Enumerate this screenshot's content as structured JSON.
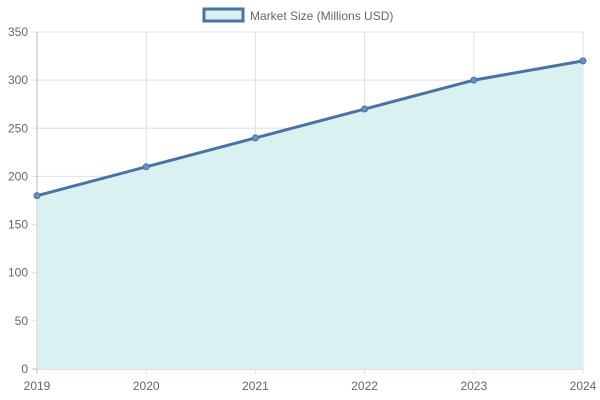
{
  "chart_data": {
    "type": "area",
    "x": [
      "2019",
      "2020",
      "2021",
      "2022",
      "2023",
      "2024"
    ],
    "series": [
      {
        "name": "Market Size (Millions USD)",
        "values": [
          180,
          210,
          240,
          270,
          300,
          320
        ],
        "line_color": "#4a72a3",
        "fill_color": "#d9f1f1"
      }
    ],
    "ylim": [
      0,
      350
    ],
    "y_ticks": [
      0,
      50,
      100,
      150,
      200,
      250,
      300,
      350
    ],
    "grid": true,
    "legend_position": "top-center"
  }
}
